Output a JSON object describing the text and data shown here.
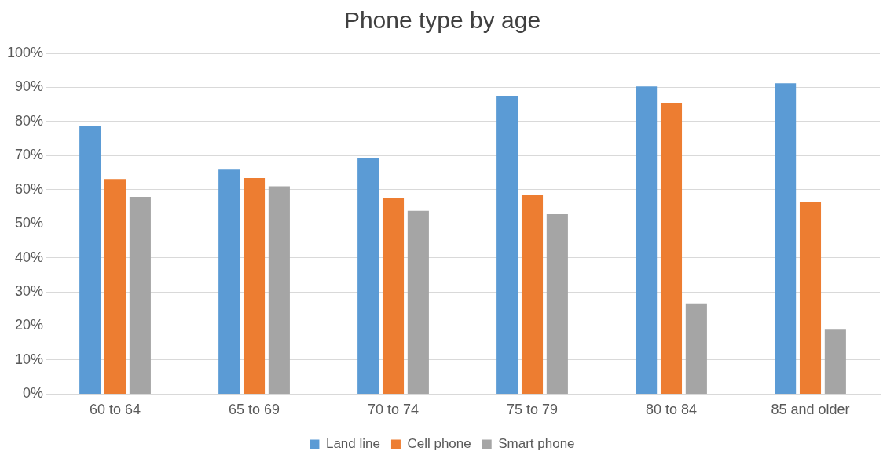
{
  "chart_data": {
    "type": "bar",
    "title": "Phone type by age",
    "categories": [
      "60 to 64",
      "65 to 69",
      "70 to 74",
      "75 to 79",
      "80 to 84",
      "85 and older"
    ],
    "series": [
      {
        "name": "Land line",
        "color": "#5b9bd5",
        "values": [
          78.8,
          65.9,
          69.2,
          87.4,
          90.3,
          91.2
        ]
      },
      {
        "name": "Cell phone",
        "color": "#ed7d31",
        "values": [
          63.1,
          63.4,
          57.6,
          58.4,
          85.5,
          56.4
        ]
      },
      {
        "name": "Smart phone",
        "color": "#a5a5a5",
        "values": [
          57.9,
          61.0,
          53.8,
          52.8,
          26.6,
          18.9
        ]
      }
    ],
    "ylim": [
      0,
      100
    ],
    "yticks": [
      {
        "value": 0,
        "label": "0%"
      },
      {
        "value": 10,
        "label": "10%"
      },
      {
        "value": 20,
        "label": "20%"
      },
      {
        "value": 30,
        "label": "30%"
      },
      {
        "value": 40,
        "label": "40%"
      },
      {
        "value": 50,
        "label": "50%"
      },
      {
        "value": 60,
        "label": "60%"
      },
      {
        "value": 70,
        "label": "70%"
      },
      {
        "value": 80,
        "label": "80%"
      },
      {
        "value": 90,
        "label": "90%"
      },
      {
        "value": 100,
        "label": "100%"
      }
    ],
    "grid": "y",
    "legend": "bottom"
  }
}
